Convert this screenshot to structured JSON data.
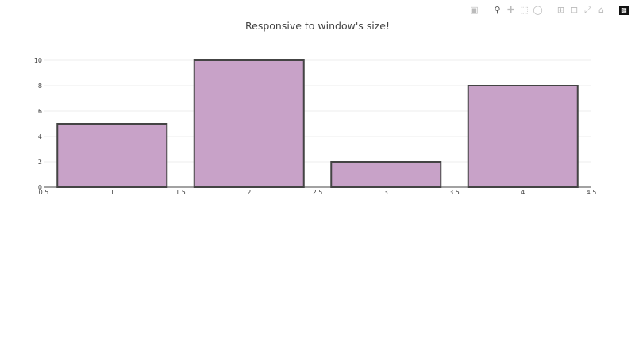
{
  "chart_data": {
    "type": "bar",
    "title": "Responsive to window's size!",
    "x": [
      1,
      2,
      3,
      4
    ],
    "values": [
      5,
      10,
      2,
      8
    ],
    "bar_width": 0.8,
    "xlim": [
      0.5,
      4.5
    ],
    "ylim": [
      0,
      10
    ],
    "xticks": [
      0.5,
      1,
      1.5,
      2,
      2.5,
      3,
      3.5,
      4,
      4.5
    ],
    "yticks": [
      0,
      2,
      4,
      6,
      8,
      10
    ],
    "xlabel": "",
    "ylabel": "",
    "grid": true,
    "bar_color": "#c8a2c8",
    "bar_line_color": "#444444"
  },
  "modebar": {
    "icons": [
      "camera-icon",
      "zoom-icon",
      "pan-icon",
      "box-select-icon",
      "lasso-icon",
      "zoom-in-icon",
      "zoom-out-icon",
      "autoscale-icon",
      "home-icon",
      "plotly-logo-icon"
    ]
  }
}
